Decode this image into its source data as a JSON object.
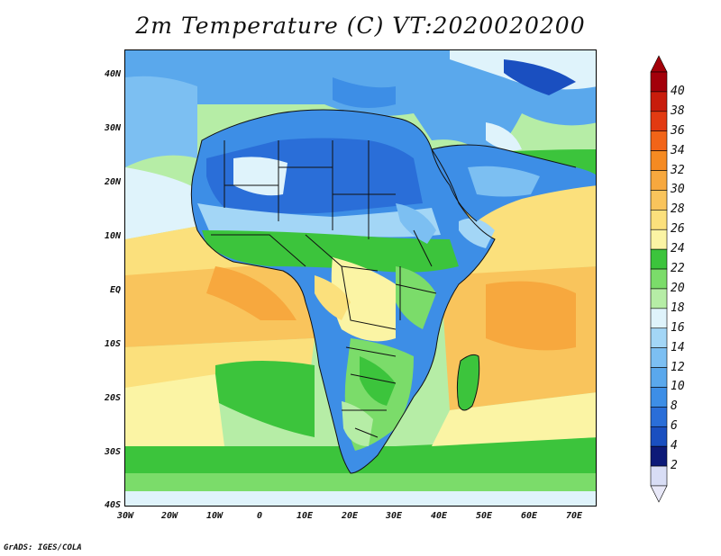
{
  "title": "2m Temperature (C) VT:2020020200",
  "credit": "GrADS: IGES/COLA",
  "map": {
    "region": "Africa",
    "projection": "latlon",
    "lon_range": [
      -30,
      75
    ],
    "lat_range": [
      -40,
      45
    ],
    "y_ticks": [
      "40N",
      "30N",
      "20N",
      "10N",
      "EQ",
      "10S",
      "20S",
      "30S",
      "40S"
    ],
    "x_ticks": [
      "30W",
      "20W",
      "10W",
      "0",
      "10E",
      "20E",
      "30E",
      "40E",
      "50E",
      "60E",
      "70E"
    ]
  },
  "colorbar": {
    "levels": [
      "2",
      "4",
      "6",
      "8",
      "10",
      "12",
      "14",
      "16",
      "18",
      "20",
      "22",
      "24",
      "26",
      "28",
      "30",
      "32",
      "34",
      "36",
      "38",
      "40"
    ],
    "colors": [
      "#0d1a78",
      "#1a4fc0",
      "#2a6ed8",
      "#3d8ee6",
      "#5aa8ec",
      "#7cbff2",
      "#a3d6f6",
      "#dff3fb",
      "#b6eda6",
      "#7bdc6a",
      "#3cc43c",
      "#fbf4a4",
      "#fbe07c",
      "#f9c45c",
      "#f7a83e",
      "#f58a22",
      "#f26418",
      "#e23a12",
      "#c81c0c",
      "#a3000a"
    ]
  }
}
